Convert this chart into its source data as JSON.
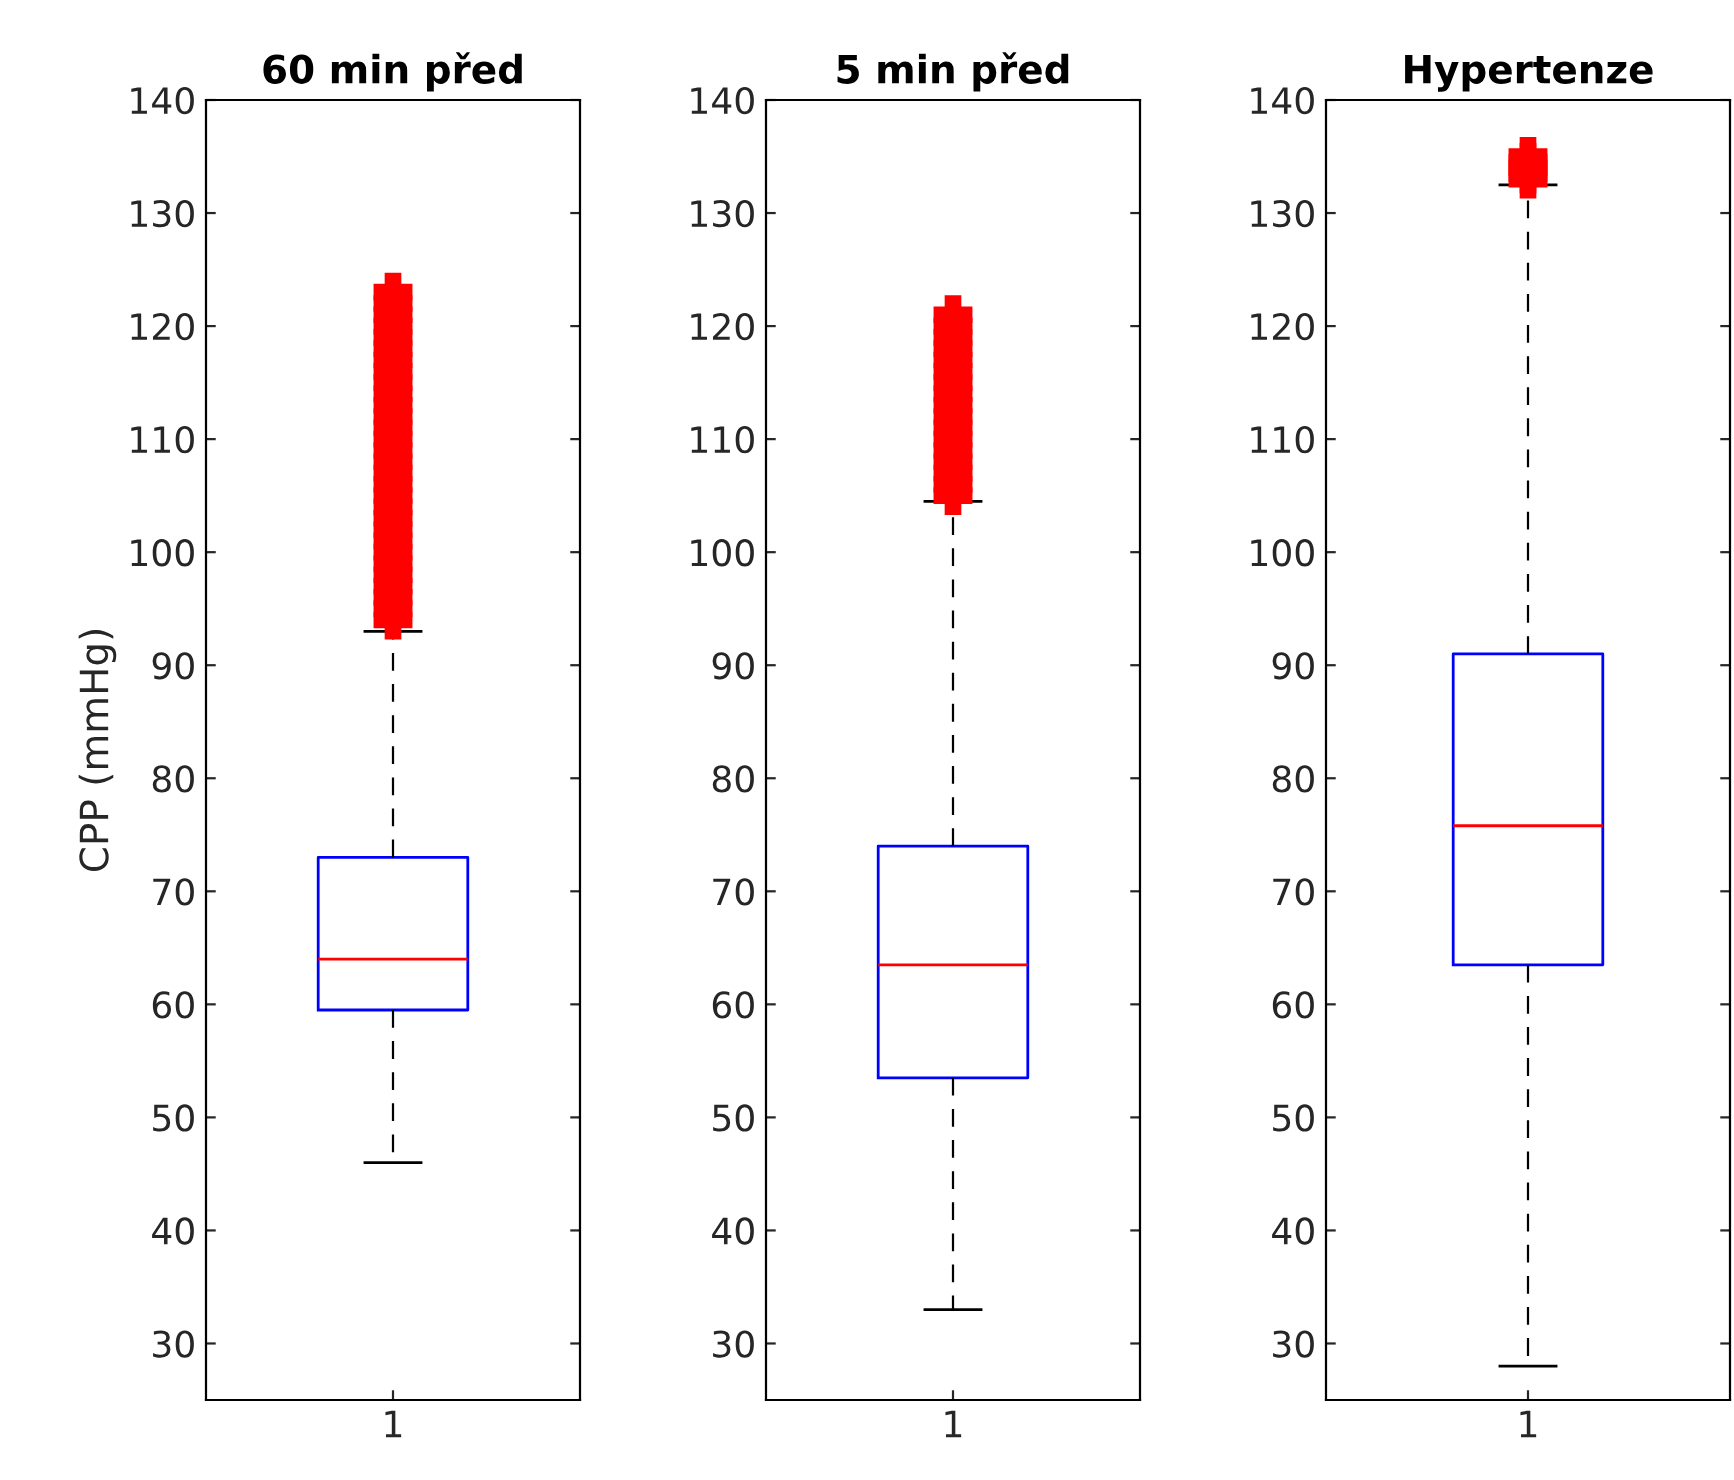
{
  "chart_data": [
    {
      "type": "box",
      "title": "60 min před",
      "ylabel": "CPP (mmHg)",
      "categories": [
        "1"
      ],
      "ylim": [
        25,
        140
      ],
      "yticks": [
        30,
        40,
        50,
        60,
        70,
        80,
        90,
        100,
        110,
        120,
        130,
        140
      ],
      "grid": false,
      "series": [
        {
          "color": "#0000ff",
          "boxes": [
            {
              "low": 46,
              "q1": 59.5,
              "median": 64,
              "q3": 73,
              "high": 93,
              "outliers": [
                94,
                95,
                96,
                97,
                98,
                99,
                100,
                101,
                102,
                103,
                104,
                105,
                106,
                107,
                108,
                109,
                110,
                111,
                112,
                113,
                114,
                115,
                116,
                117,
                118,
                119,
                120,
                121,
                122,
                123
              ]
            }
          ]
        }
      ]
    },
    {
      "type": "box",
      "title": "5 min před",
      "categories": [
        "1"
      ],
      "ylim": [
        25,
        140
      ],
      "yticks": [
        30,
        40,
        50,
        60,
        70,
        80,
        90,
        100,
        110,
        120,
        130,
        140
      ],
      "grid": false,
      "series": [
        {
          "color": "#0000ff",
          "boxes": [
            {
              "low": 33,
              "q1": 53.5,
              "median": 63.5,
              "q3": 74,
              "high": 104.5,
              "outliers": [
                105,
                106,
                107,
                108,
                109,
                110,
                111,
                112,
                113,
                114,
                115,
                116,
                117,
                118,
                119,
                120,
                121
              ]
            }
          ]
        }
      ]
    },
    {
      "type": "box",
      "title": "Hypertenze",
      "categories": [
        "1"
      ],
      "ylim": [
        25,
        140
      ],
      "yticks": [
        30,
        40,
        50,
        60,
        70,
        80,
        90,
        100,
        110,
        120,
        130,
        140
      ],
      "grid": false,
      "series": [
        {
          "color": "#0000ff",
          "boxes": [
            {
              "low": 28,
              "q1": 63.5,
              "median": 75.8,
              "q3": 91,
              "high": 132.5,
              "outliers": [
                133,
                133.5,
                134,
                134.5,
                135
              ]
            }
          ]
        }
      ]
    }
  ]
}
